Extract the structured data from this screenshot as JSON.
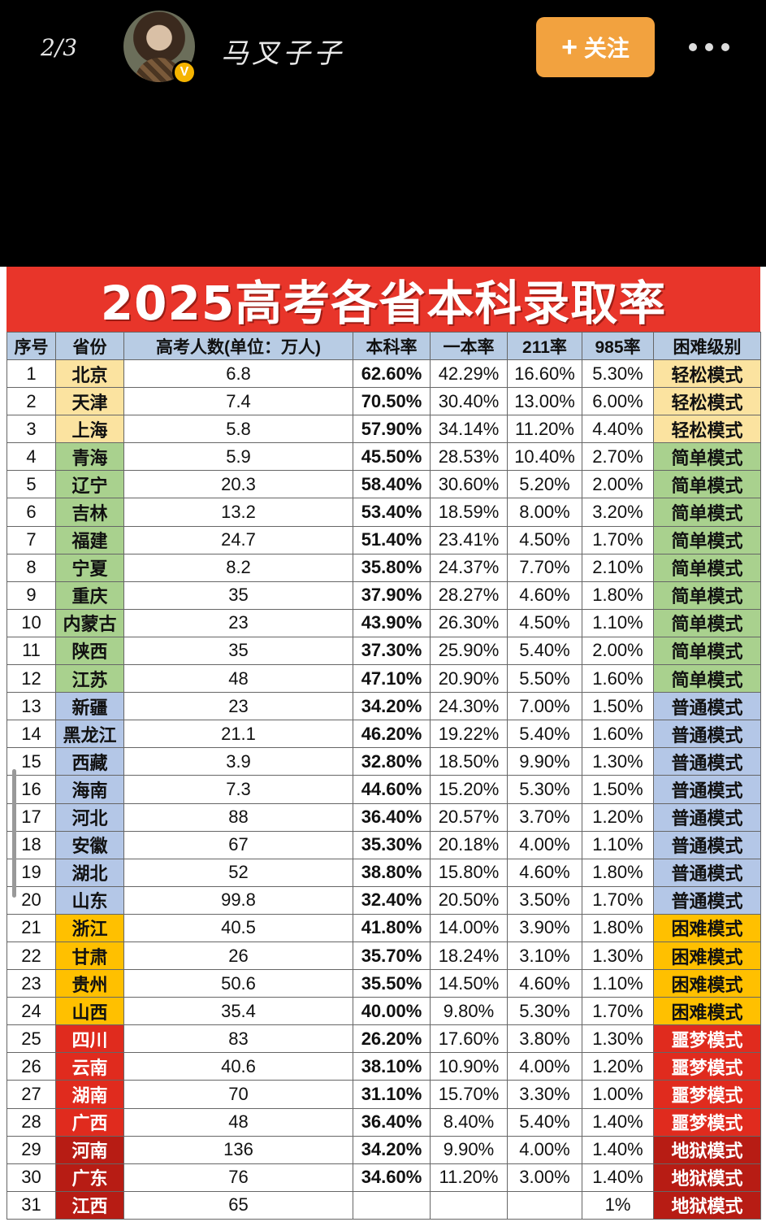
{
  "header": {
    "page_count": "2/3",
    "username": "马叉子子",
    "verified_mark": "V",
    "follow_label": "关注",
    "follow_plus": "+"
  },
  "table": {
    "title": "2025高考各省本科录取率",
    "columns": [
      "序号",
      "省份",
      "高考人数(单位：万人)",
      "本科率",
      "一本率",
      "211率",
      "985率",
      "困难级别"
    ],
    "rows": [
      {
        "idx": "1",
        "prov": "北京",
        "count": "6.8",
        "ug": "62.60%",
        "t1": "42.29%",
        "r211": "16.60%",
        "r985": "5.30%",
        "level": "轻松模式",
        "cls": "lvl-easy"
      },
      {
        "idx": "2",
        "prov": "天津",
        "count": "7.4",
        "ug": "70.50%",
        "t1": "30.40%",
        "r211": "13.00%",
        "r985": "6.00%",
        "level": "轻松模式",
        "cls": "lvl-easy"
      },
      {
        "idx": "3",
        "prov": "上海",
        "count": "5.8",
        "ug": "57.90%",
        "t1": "34.14%",
        "r211": "11.20%",
        "r985": "4.40%",
        "level": "轻松模式",
        "cls": "lvl-easy"
      },
      {
        "idx": "4",
        "prov": "青海",
        "count": "5.9",
        "ug": "45.50%",
        "t1": "28.53%",
        "r211": "10.40%",
        "r985": "2.70%",
        "level": "简单模式",
        "cls": "lvl-simple"
      },
      {
        "idx": "5",
        "prov": "辽宁",
        "count": "20.3",
        "ug": "58.40%",
        "t1": "30.60%",
        "r211": "5.20%",
        "r985": "2.00%",
        "level": "简单模式",
        "cls": "lvl-simple"
      },
      {
        "idx": "6",
        "prov": "吉林",
        "count": "13.2",
        "ug": "53.40%",
        "t1": "18.59%",
        "r211": "8.00%",
        "r985": "3.20%",
        "level": "简单模式",
        "cls": "lvl-simple"
      },
      {
        "idx": "7",
        "prov": "福建",
        "count": "24.7",
        "ug": "51.40%",
        "t1": "23.41%",
        "r211": "4.50%",
        "r985": "1.70%",
        "level": "简单模式",
        "cls": "lvl-simple"
      },
      {
        "idx": "8",
        "prov": "宁夏",
        "count": "8.2",
        "ug": "35.80%",
        "t1": "24.37%",
        "r211": "7.70%",
        "r985": "2.10%",
        "level": "简单模式",
        "cls": "lvl-simple"
      },
      {
        "idx": "9",
        "prov": "重庆",
        "count": "35",
        "ug": "37.90%",
        "t1": "28.27%",
        "r211": "4.60%",
        "r985": "1.80%",
        "level": "简单模式",
        "cls": "lvl-simple"
      },
      {
        "idx": "10",
        "prov": "内蒙古",
        "count": "23",
        "ug": "43.90%",
        "t1": "26.30%",
        "r211": "4.50%",
        "r985": "1.10%",
        "level": "简单模式",
        "cls": "lvl-simple"
      },
      {
        "idx": "11",
        "prov": "陕西",
        "count": "35",
        "ug": "37.30%",
        "t1": "25.90%",
        "r211": "5.40%",
        "r985": "2.00%",
        "level": "简单模式",
        "cls": "lvl-simple"
      },
      {
        "idx": "12",
        "prov": "江苏",
        "count": "48",
        "ug": "47.10%",
        "t1": "20.90%",
        "r211": "5.50%",
        "r985": "1.60%",
        "level": "简单模式",
        "cls": "lvl-simple"
      },
      {
        "idx": "13",
        "prov": "新疆",
        "count": "23",
        "ug": "34.20%",
        "t1": "24.30%",
        "r211": "7.00%",
        "r985": "1.50%",
        "level": "普通模式",
        "cls": "lvl-normal"
      },
      {
        "idx": "14",
        "prov": "黑龙江",
        "count": "21.1",
        "ug": "46.20%",
        "t1": "19.22%",
        "r211": "5.40%",
        "r985": "1.60%",
        "level": "普通模式",
        "cls": "lvl-normal"
      },
      {
        "idx": "15",
        "prov": "西藏",
        "count": "3.9",
        "ug": "32.80%",
        "t1": "18.50%",
        "r211": "9.90%",
        "r985": "1.30%",
        "level": "普通模式",
        "cls": "lvl-normal"
      },
      {
        "idx": "16",
        "prov": "海南",
        "count": "7.3",
        "ug": "44.60%",
        "t1": "15.20%",
        "r211": "5.30%",
        "r985": "1.50%",
        "level": "普通模式",
        "cls": "lvl-normal"
      },
      {
        "idx": "17",
        "prov": "河北",
        "count": "88",
        "ug": "36.40%",
        "t1": "20.57%",
        "r211": "3.70%",
        "r985": "1.20%",
        "level": "普通模式",
        "cls": "lvl-normal"
      },
      {
        "idx": "18",
        "prov": "安徽",
        "count": "67",
        "ug": "35.30%",
        "t1": "20.18%",
        "r211": "4.00%",
        "r985": "1.10%",
        "level": "普通模式",
        "cls": "lvl-normal"
      },
      {
        "idx": "19",
        "prov": "湖北",
        "count": "52",
        "ug": "38.80%",
        "t1": "15.80%",
        "r211": "4.60%",
        "r985": "1.80%",
        "level": "普通模式",
        "cls": "lvl-normal"
      },
      {
        "idx": "20",
        "prov": "山东",
        "count": "99.8",
        "ug": "32.40%",
        "t1": "20.50%",
        "r211": "3.50%",
        "r985": "1.70%",
        "level": "普通模式",
        "cls": "lvl-normal"
      },
      {
        "idx": "21",
        "prov": "浙江",
        "count": "40.5",
        "ug": "41.80%",
        "t1": "14.00%",
        "r211": "3.90%",
        "r985": "1.80%",
        "level": "困难模式",
        "cls": "lvl-hard"
      },
      {
        "idx": "22",
        "prov": "甘肃",
        "count": "26",
        "ug": "35.70%",
        "t1": "18.24%",
        "r211": "3.10%",
        "r985": "1.30%",
        "level": "困难模式",
        "cls": "lvl-hard"
      },
      {
        "idx": "23",
        "prov": "贵州",
        "count": "50.6",
        "ug": "35.50%",
        "t1": "14.50%",
        "r211": "4.60%",
        "r985": "1.10%",
        "level": "困难模式",
        "cls": "lvl-hard"
      },
      {
        "idx": "24",
        "prov": "山西",
        "count": "35.4",
        "ug": "40.00%",
        "t1": "9.80%",
        "r211": "5.30%",
        "r985": "1.70%",
        "level": "困难模式",
        "cls": "lvl-hard"
      },
      {
        "idx": "25",
        "prov": "四川",
        "count": "83",
        "ug": "26.20%",
        "t1": "17.60%",
        "r211": "3.80%",
        "r985": "1.30%",
        "level": "噩梦模式",
        "cls": "lvl-nightmare"
      },
      {
        "idx": "26",
        "prov": "云南",
        "count": "40.6",
        "ug": "38.10%",
        "t1": "10.90%",
        "r211": "4.00%",
        "r985": "1.20%",
        "level": "噩梦模式",
        "cls": "lvl-nightmare"
      },
      {
        "idx": "27",
        "prov": "湖南",
        "count": "70",
        "ug": "31.10%",
        "t1": "15.70%",
        "r211": "3.30%",
        "r985": "1.00%",
        "level": "噩梦模式",
        "cls": "lvl-nightmare"
      },
      {
        "idx": "28",
        "prov": "广西",
        "count": "48",
        "ug": "36.40%",
        "t1": "8.40%",
        "r211": "5.40%",
        "r985": "1.40%",
        "level": "噩梦模式",
        "cls": "lvl-nightmare"
      },
      {
        "idx": "29",
        "prov": "河南",
        "count": "136",
        "ug": "34.20%",
        "t1": "9.90%",
        "r211": "4.00%",
        "r985": "1.40%",
        "level": "地狱模式",
        "cls": "lvl-hell"
      },
      {
        "idx": "30",
        "prov": "广东",
        "count": "76",
        "ug": "34.60%",
        "t1": "11.20%",
        "r211": "3.00%",
        "r985": "1.40%",
        "level": "地狱模式",
        "cls": "lvl-hell"
      },
      {
        "idx": "31",
        "prov": "江西",
        "count": "65",
        "ug": "",
        "t1": "",
        "r211": "",
        "r985": "1%",
        "level": "地狱模式",
        "cls": "lvl-hell"
      }
    ]
  }
}
